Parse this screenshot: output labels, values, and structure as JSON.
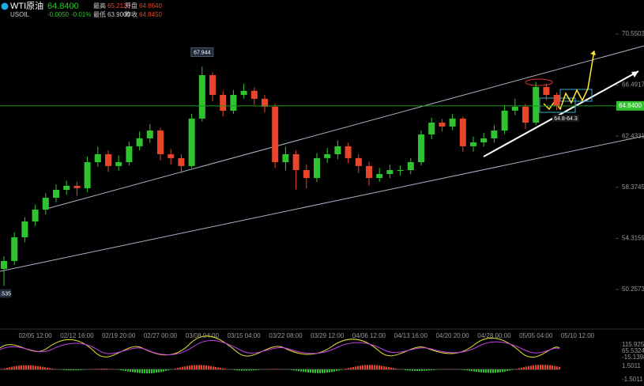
{
  "header": {
    "symbol": "WTI原油",
    "code": "USOIL",
    "price": "64.8400",
    "change": "-0.0050",
    "change_pct": "-0.01%",
    "stats": [
      {
        "label": "最高",
        "value": "65.2120"
      },
      {
        "label": "开盘",
        "value": "64.8640"
      },
      {
        "label": "最低",
        "value": "63.9000"
      },
      {
        "label": "昨收",
        "value": "64.8450"
      }
    ]
  },
  "chart_data": {
    "type": "candlestick",
    "categories": [
      null,
      null,
      null,
      "02/05 12:00",
      null,
      null,
      null,
      "02/12 16:00",
      null,
      null,
      null,
      "02/19 20:00",
      null,
      null,
      null,
      "02/27 00:00",
      null,
      null,
      null,
      "03/08 04:00",
      null,
      null,
      null,
      "03/15 04:00",
      null,
      null,
      null,
      "03/22 08:00",
      null,
      null,
      null,
      "03/29 12:00",
      null,
      null,
      null,
      "04/06 12:00",
      null,
      null,
      null,
      "04/13 16:00",
      null,
      null,
      null,
      "04/20 20:00",
      null,
      null,
      null,
      "04/28 00:00",
      null,
      null,
      null,
      "05/05 04:00",
      null,
      null,
      null,
      "05/10 12:00"
    ],
    "open": [
      51.89,
      52.52,
      54.4,
      55.66,
      56.6,
      57.54,
      58.17,
      58.49,
      58.3,
      60.37,
      61.0,
      60.06,
      60.37,
      61.63,
      62.26,
      62.88,
      61.0,
      60.69,
      60.06,
      63.83,
      67.28,
      65.71,
      64.45,
      65.71,
      66.03,
      65.4,
      64.77,
      60.37,
      61.0,
      59.74,
      59.11,
      60.69,
      61.0,
      61.63,
      60.69,
      60.06,
      59.11,
      59.43,
      59.74,
      59.74,
      60.37,
      62.57,
      63.51,
      63.2,
      63.83,
      61.63,
      61.94,
      62.26,
      62.88,
      64.46,
      64.77,
      63.51,
      66.34,
      65.71,
      null,
      null
    ],
    "high": [
      52.9,
      54.8,
      56.0,
      57.0,
      57.9,
      58.6,
      58.9,
      58.8,
      60.8,
      61.6,
      61.3,
      60.9,
      62.0,
      62.8,
      63.4,
      63.1,
      61.4,
      61.0,
      64.2,
      67.944,
      67.5,
      66.0,
      66.1,
      66.6,
      66.3,
      65.7,
      65.0,
      61.6,
      61.3,
      60.2,
      61.1,
      61.5,
      62.1,
      61.9,
      61.0,
      60.4,
      59.9,
      60.2,
      60.1,
      60.7,
      62.9,
      63.9,
      63.8,
      64.2,
      64.0,
      62.4,
      62.7,
      63.3,
      64.9,
      65.4,
      65.0,
      66.75,
      66.6,
      65.9,
      null,
      null
    ],
    "low": [
      50.535,
      52.2,
      54.0,
      55.3,
      56.2,
      57.2,
      57.8,
      57.7,
      58.0,
      60.0,
      59.6,
      59.7,
      60.1,
      61.3,
      61.9,
      60.5,
      60.2,
      59.5,
      59.9,
      63.6,
      65.2,
      64.0,
      64.2,
      65.4,
      64.9,
      64.3,
      59.9,
      59.7,
      58.2,
      58.3,
      58.8,
      60.3,
      60.6,
      60.3,
      59.5,
      58.5,
      58.8,
      59.1,
      59.3,
      59.4,
      60.1,
      62.2,
      62.8,
      62.9,
      61.2,
      61.2,
      61.6,
      61.9,
      62.6,
      64.1,
      63.0,
      63.3,
      65.3,
      64.5,
      null,
      null
    ],
    "close": [
      52.52,
      54.4,
      55.66,
      56.6,
      57.54,
      58.17,
      58.49,
      58.3,
      60.37,
      61.0,
      60.06,
      60.37,
      61.63,
      62.26,
      62.88,
      61.0,
      60.69,
      60.06,
      63.83,
      67.28,
      65.71,
      64.45,
      65.71,
      66.03,
      65.4,
      64.77,
      60.37,
      61.0,
      59.74,
      59.11,
      60.69,
      61.0,
      61.63,
      60.69,
      60.06,
      59.11,
      59.43,
      59.74,
      59.74,
      60.37,
      62.57,
      63.51,
      63.2,
      63.83,
      61.63,
      61.94,
      62.26,
      62.88,
      64.46,
      64.77,
      63.51,
      66.34,
      65.71,
      64.84,
      null,
      null
    ],
    "up_color": "#2fc42f",
    "down_color": "#e8452c",
    "ylim": [
      47.49,
      72.62
    ],
    "yticks": [
      50.2573,
      54.3159,
      58.3745,
      62.4331,
      66.4917,
      70.5503
    ],
    "price_line": {
      "value": 64.84,
      "label": "64.8400"
    },
    "annotations": [
      {
        "value": 67.944,
        "label": "67.944"
      },
      {
        "value": 50.535,
        "label": "50.535"
      },
      {
        "text": "64.8-64.3"
      }
    ]
  },
  "indicators": {
    "panel1_ticks": [
      "115.925",
      "65.5324",
      "-15.1398"
    ],
    "panel2_ticks": [
      "1.5011",
      "-1.5011"
    ]
  }
}
